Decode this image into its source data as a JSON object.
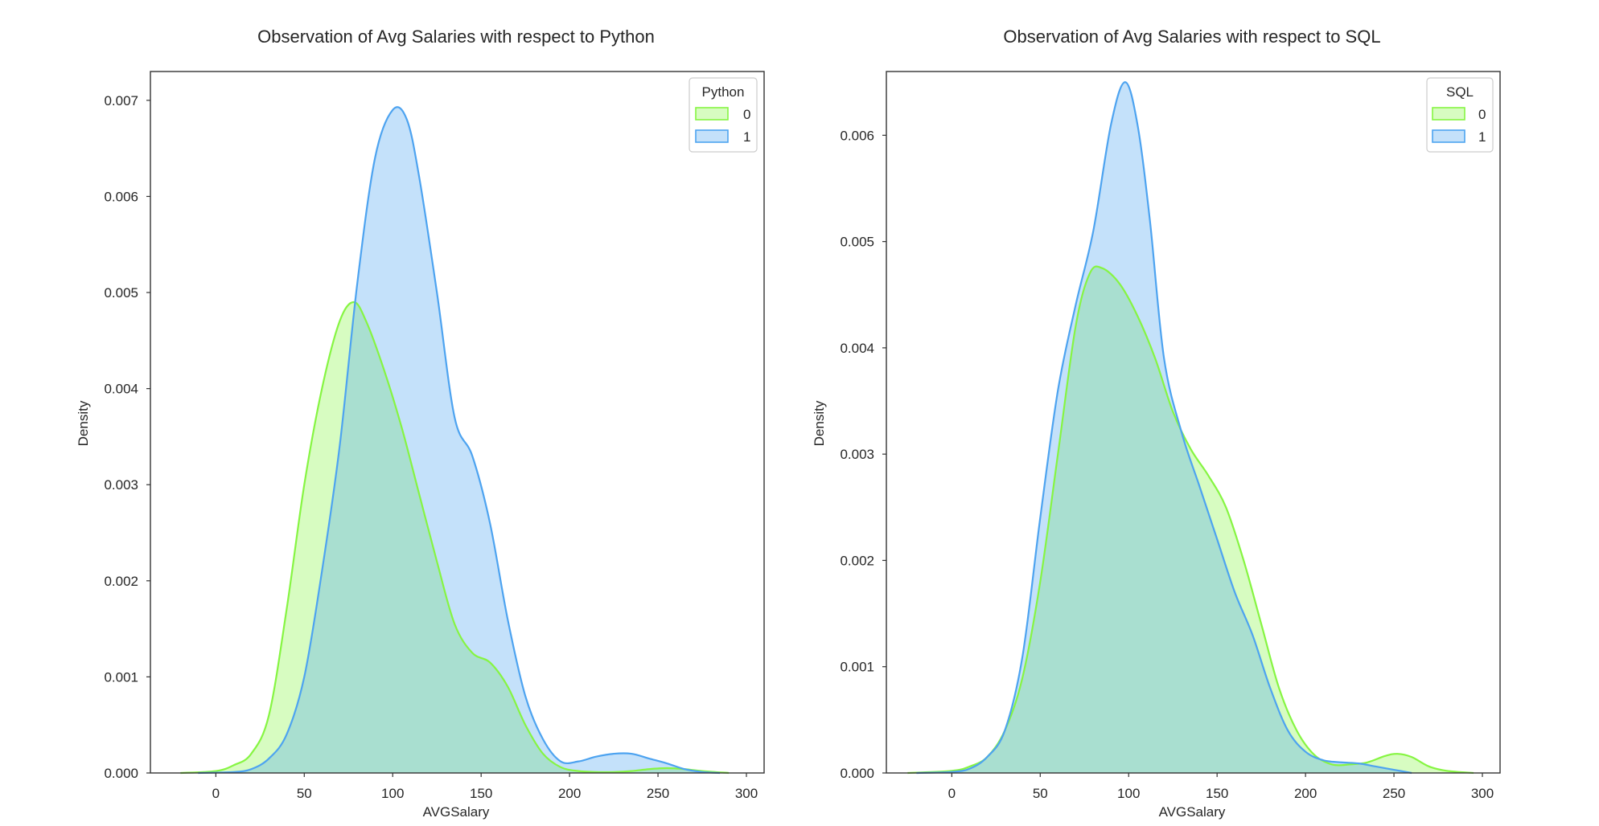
{
  "colors": {
    "series0": "#86f542",
    "series1": "#4da3f0",
    "axis": "#333333",
    "text": "#262626"
  },
  "chart_data": [
    {
      "type": "area",
      "title": "Observation of Avg Salaries with respect to Python",
      "xlabel": "AVGSalary",
      "ylabel": "Density",
      "xlim": [
        -37,
        310
      ],
      "ylim": [
        0,
        0.0073
      ],
      "xticks": [
        "0",
        "50",
        "100",
        "150",
        "200",
        "250",
        "300"
      ],
      "xtick_values": [
        0,
        50,
        100,
        150,
        200,
        250,
        300
      ],
      "yticks": [
        "0.000",
        "0.001",
        "0.002",
        "0.003",
        "0.004",
        "0.005",
        "0.006",
        "0.007"
      ],
      "ytick_values": [
        0,
        0.001,
        0.002,
        0.003,
        0.004,
        0.005,
        0.006,
        0.007
      ],
      "grid": false,
      "legend": {
        "title": "Python",
        "placement": "top-right"
      },
      "series": [
        {
          "name": "0",
          "x": [
            -20,
            0,
            10,
            20,
            30,
            40,
            50,
            60,
            70,
            78,
            85,
            95,
            105,
            115,
            125,
            135,
            145,
            155,
            165,
            175,
            185,
            195,
            205,
            215,
            225,
            235,
            245,
            255,
            265,
            275,
            290
          ],
          "y": [
            0,
            2e-05,
            8e-05,
            0.0002,
            0.0006,
            0.0017,
            0.003,
            0.004,
            0.0047,
            0.0049,
            0.0047,
            0.0042,
            0.0036,
            0.0029,
            0.0022,
            0.00155,
            0.00125,
            0.00115,
            0.0009,
            0.0005,
            0.0002,
            6e-05,
            2e-05,
            1e-05,
            1e-05,
            2e-05,
            4e-05,
            5e-05,
            4e-05,
            2e-05,
            0
          ]
        },
        {
          "name": "1",
          "x": [
            -10,
            10,
            20,
            30,
            40,
            50,
            60,
            70,
            80,
            90,
            100,
            108,
            115,
            125,
            135,
            145,
            155,
            165,
            175,
            185,
            195,
            205,
            215,
            225,
            235,
            245,
            255,
            265,
            275,
            285
          ],
          "y": [
            0,
            1e-05,
            4e-05,
            0.00015,
            0.0004,
            0.001,
            0.0021,
            0.0034,
            0.0051,
            0.0064,
            0.0069,
            0.0068,
            0.0062,
            0.005,
            0.0037,
            0.0033,
            0.0026,
            0.0016,
            0.0008,
            0.00035,
            0.00012,
            0.00012,
            0.00017,
            0.0002,
            0.0002,
            0.00015,
            0.0001,
            4e-05,
            1e-05,
            0
          ]
        }
      ]
    },
    {
      "type": "area",
      "title": "Observation of Avg Salaries with respect to SQL",
      "xlabel": "AVGSalary",
      "ylabel": "Density",
      "xlim": [
        -37,
        310
      ],
      "ylim": [
        0,
        0.0066
      ],
      "xticks": [
        "0",
        "50",
        "100",
        "150",
        "200",
        "250",
        "300"
      ],
      "xtick_values": [
        0,
        50,
        100,
        150,
        200,
        250,
        300
      ],
      "yticks": [
        "0.000",
        "0.001",
        "0.002",
        "0.003",
        "0.004",
        "0.005",
        "0.006"
      ],
      "ytick_values": [
        0,
        0.001,
        0.002,
        0.003,
        0.004,
        0.005,
        0.006
      ],
      "grid": false,
      "legend": {
        "title": "SQL",
        "placement": "top-right"
      },
      "series": [
        {
          "name": "0",
          "x": [
            -25,
            0,
            10,
            20,
            30,
            40,
            50,
            60,
            70,
            78,
            85,
            95,
            105,
            115,
            125,
            135,
            145,
            155,
            165,
            175,
            185,
            195,
            205,
            215,
            225,
            235,
            245,
            252,
            260,
            270,
            280,
            295
          ],
          "y": [
            0,
            2e-05,
            6e-05,
            0.00015,
            0.0004,
            0.0009,
            0.0018,
            0.003,
            0.0042,
            0.0047,
            0.00475,
            0.0046,
            0.0043,
            0.0039,
            0.0034,
            0.00305,
            0.0028,
            0.0025,
            0.002,
            0.0014,
            0.0008,
            0.0004,
            0.00017,
            8e-05,
            8e-05,
            0.0001,
            0.00016,
            0.00018,
            0.00015,
            6e-05,
            2e-05,
            0
          ]
        },
        {
          "name": "1",
          "x": [
            -20,
            0,
            10,
            20,
            30,
            40,
            50,
            60,
            70,
            80,
            90,
            98,
            105,
            112,
            120,
            130,
            140,
            150,
            160,
            170,
            180,
            190,
            200,
            210,
            220,
            230,
            240,
            250,
            260
          ],
          "y": [
            0,
            1e-05,
            4e-05,
            0.00015,
            0.0004,
            0.0011,
            0.0024,
            0.0036,
            0.0044,
            0.0051,
            0.0061,
            0.0065,
            0.0061,
            0.0052,
            0.0039,
            0.0032,
            0.0027,
            0.0022,
            0.0017,
            0.0013,
            0.0008,
            0.0004,
            0.0002,
            0.00012,
            0.0001,
            9e-05,
            6e-05,
            3e-05,
            0
          ]
        }
      ]
    }
  ]
}
